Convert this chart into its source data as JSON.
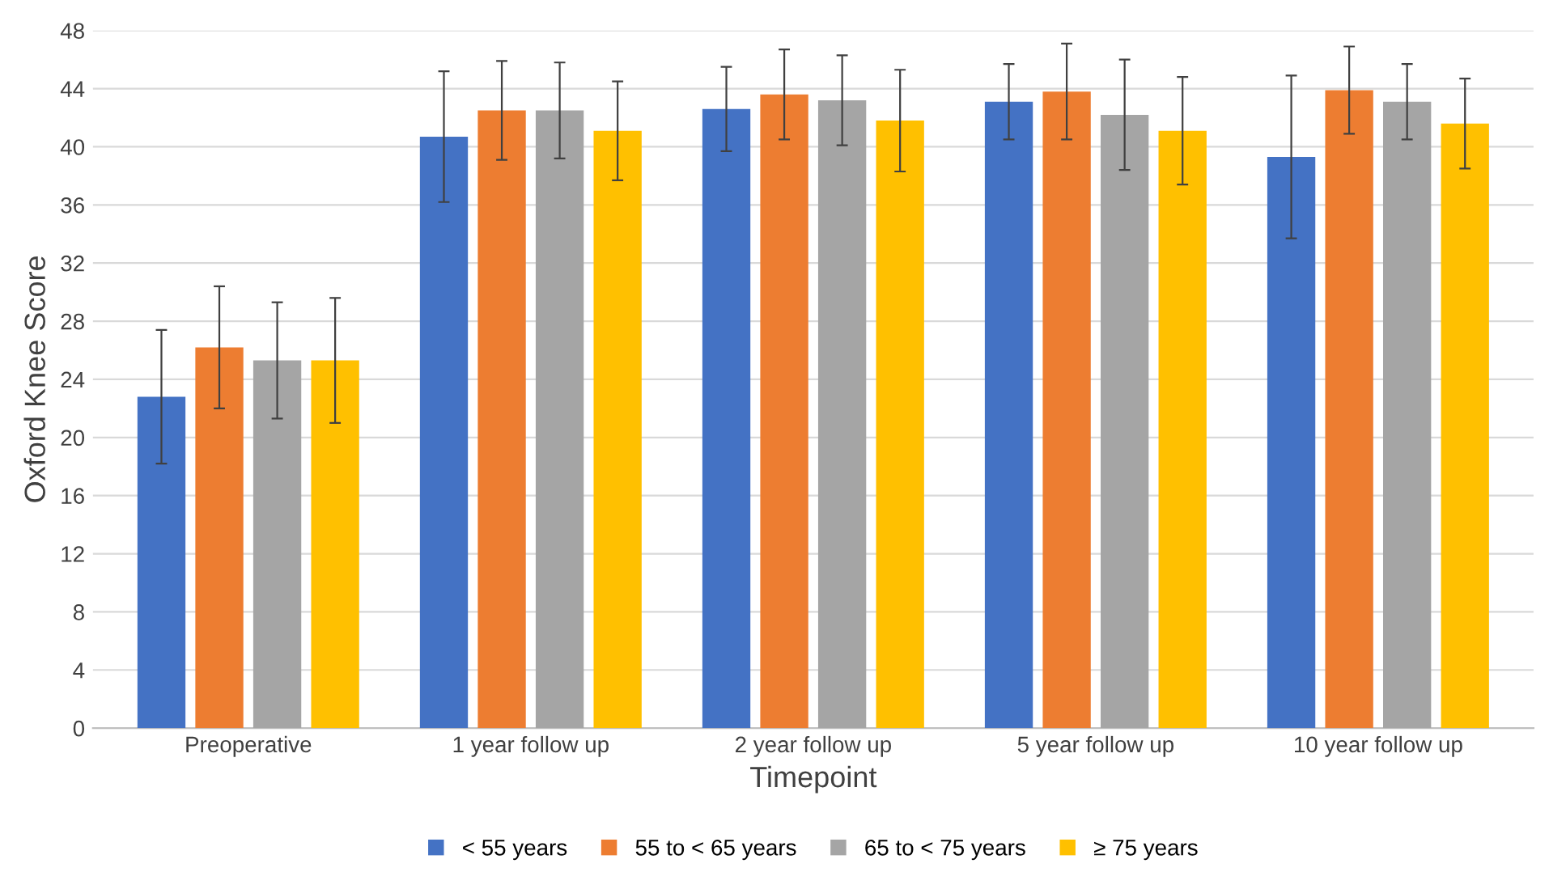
{
  "chart_data": {
    "type": "bar",
    "xlabel": "Timepoint",
    "ylabel": "Oxford Knee Score",
    "categories": [
      "Preoperative",
      "1 year follow up",
      "2 year follow up",
      "5 year follow up",
      "10 year follow up"
    ],
    "series": [
      {
        "name": "< 55 years",
        "color": "#4472c4",
        "values": [
          22.8,
          40.7,
          42.6,
          43.1,
          39.3
        ],
        "errors": [
          4.6,
          4.5,
          2.9,
          2.6,
          5.6
        ]
      },
      {
        "name": "55 to < 65 years",
        "color": "#ed7d31",
        "values": [
          26.2,
          42.5,
          43.6,
          43.8,
          43.9
        ],
        "errors": [
          4.2,
          3.4,
          3.1,
          3.3,
          3.0
        ]
      },
      {
        "name": "65 to < 75 years",
        "color": "#a5a5a5",
        "values": [
          25.3,
          42.5,
          43.2,
          42.2,
          43.1
        ],
        "errors": [
          4.0,
          3.3,
          3.1,
          3.8,
          2.6
        ]
      },
      {
        "name": "≥ 75 years",
        "color": "#ffc000",
        "values": [
          25.3,
          41.1,
          41.8,
          41.1,
          41.6
        ],
        "errors": [
          4.3,
          3.4,
          3.5,
          3.7,
          3.1
        ]
      }
    ],
    "ylim": [
      0,
      48
    ],
    "yticks": [
      0,
      4,
      8,
      12,
      16,
      20,
      24,
      28,
      32,
      36,
      40,
      44,
      48
    ],
    "grid": "y",
    "legend": "bottom"
  }
}
